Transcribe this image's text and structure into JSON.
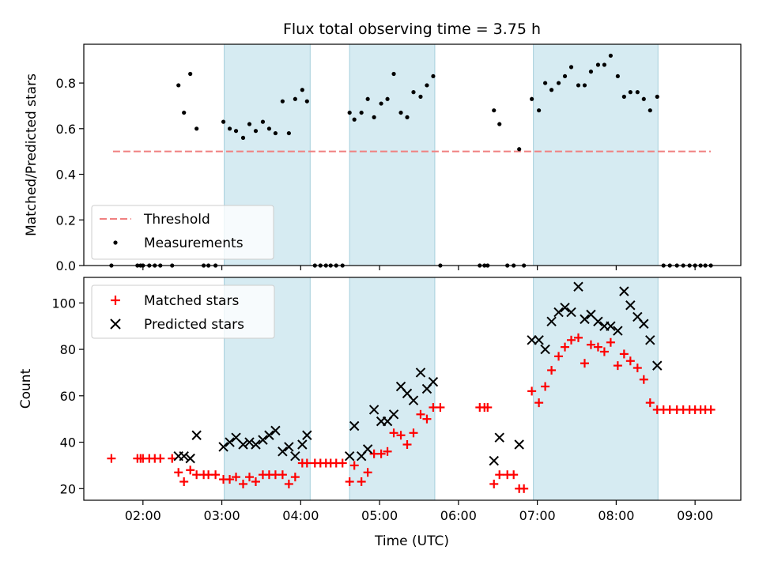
{
  "chart_data": [
    {
      "type": "scatter",
      "title": "Flux total observing time = 3.75 h",
      "ylabel": "Matched/Predicted stars",
      "xlabel": "",
      "xlim": [
        1.25,
        9.58
      ],
      "ylim": [
        0,
        0.97
      ],
      "yticks": [
        0.0,
        0.2,
        0.4,
        0.6,
        0.8
      ],
      "ytick_labels": [
        "0.0",
        "0.2",
        "0.4",
        "0.6",
        "0.8"
      ],
      "grid": false,
      "legend_position": "lower-left",
      "shaded_intervals": [
        [
          3.03,
          4.12
        ],
        [
          4.62,
          5.7
        ],
        [
          6.95,
          8.53
        ]
      ],
      "threshold": {
        "name": "Threshold",
        "y": 0.5,
        "x_range": [
          1.62,
          9.2
        ],
        "color": "#f08080",
        "style": "dashed"
      },
      "series": [
        {
          "name": "Measurements",
          "marker": "dot",
          "color": "#000000",
          "x": [
            1.6,
            1.93,
            1.97,
            2.0,
            2.08,
            2.15,
            2.22,
            2.37,
            2.45,
            2.52,
            2.6,
            2.68,
            2.77,
            2.83,
            2.92,
            3.02,
            3.1,
            3.18,
            3.27,
            3.35,
            3.43,
            3.52,
            3.6,
            3.68,
            3.77,
            3.85,
            3.93,
            4.02,
            4.08,
            4.18,
            4.25,
            4.32,
            4.38,
            4.45,
            4.53,
            4.62,
            4.68,
            4.77,
            4.85,
            4.93,
            5.02,
            5.1,
            5.18,
            5.27,
            5.35,
            5.43,
            5.52,
            5.6,
            5.68,
            5.77,
            6.27,
            6.33,
            6.37,
            6.45,
            6.52,
            6.62,
            6.7,
            6.77,
            6.83,
            6.93,
            7.02,
            7.1,
            7.18,
            7.27,
            7.35,
            7.43,
            7.52,
            7.6,
            7.68,
            7.77,
            7.85,
            7.93,
            8.02,
            8.1,
            8.18,
            8.27,
            8.35,
            8.43,
            8.52,
            8.6,
            8.68,
            8.77,
            8.85,
            8.93,
            9.0,
            9.07,
            9.13,
            9.2
          ],
          "y": [
            0,
            0,
            0,
            0,
            0,
            0,
            0,
            0,
            0.79,
            0.67,
            0.84,
            0.6,
            0,
            0,
            0,
            0.63,
            0.6,
            0.59,
            0.56,
            0.62,
            0.59,
            0.63,
            0.6,
            0.58,
            0.72,
            0.58,
            0.73,
            0.77,
            0.72,
            0,
            0,
            0,
            0,
            0,
            0,
            0.67,
            0.64,
            0.67,
            0.73,
            0.65,
            0.71,
            0.73,
            0.84,
            0.67,
            0.65,
            0.76,
            0.74,
            0.79,
            0.83,
            0,
            0,
            0,
            0,
            0.68,
            0.62,
            0,
            0,
            0.51,
            0,
            0.73,
            0.68,
            0.8,
            0.77,
            0.8,
            0.83,
            0.87,
            0.79,
            0.79,
            0.85,
            0.88,
            0.88,
            0.92,
            0.83,
            0.74,
            0.76,
            0.76,
            0.73,
            0.68,
            0.74,
            0,
            0,
            0,
            0,
            0,
            0,
            0,
            0,
            0
          ]
        }
      ]
    },
    {
      "type": "scatter",
      "title": "",
      "xlabel": "Time (UTC)",
      "ylabel": "Count",
      "xlim": [
        1.25,
        9.58
      ],
      "ylim": [
        15,
        111
      ],
      "xticks": [
        2,
        3,
        4,
        5,
        6,
        7,
        8,
        9
      ],
      "xtick_labels": [
        "02:00",
        "03:00",
        "04:00",
        "05:00",
        "06:00",
        "07:00",
        "08:00",
        "09:00"
      ],
      "yticks": [
        20,
        40,
        60,
        80,
        100
      ],
      "ytick_labels": [
        "20",
        "40",
        "60",
        "80",
        "100"
      ],
      "grid": false,
      "legend_position": "upper-left",
      "shaded_intervals": [
        [
          3.03,
          4.12
        ],
        [
          4.62,
          5.7
        ],
        [
          6.95,
          8.53
        ]
      ],
      "series": [
        {
          "name": "Matched stars",
          "marker": "plus",
          "color": "#ff0000",
          "x": [
            1.6,
            1.93,
            1.97,
            2.0,
            2.08,
            2.15,
            2.22,
            2.37,
            2.45,
            2.52,
            2.6,
            2.68,
            2.77,
            2.83,
            2.92,
            3.02,
            3.1,
            3.18,
            3.27,
            3.35,
            3.43,
            3.52,
            3.6,
            3.68,
            3.77,
            3.85,
            3.93,
            4.02,
            4.08,
            4.18,
            4.25,
            4.32,
            4.38,
            4.45,
            4.53,
            4.62,
            4.68,
            4.77,
            4.85,
            4.93,
            5.02,
            5.1,
            5.18,
            5.27,
            5.35,
            5.43,
            5.52,
            5.6,
            5.68,
            5.77,
            6.27,
            6.33,
            6.37,
            6.45,
            6.52,
            6.62,
            6.7,
            6.77,
            6.83,
            6.93,
            7.02,
            7.1,
            7.18,
            7.27,
            7.35,
            7.43,
            7.52,
            7.6,
            7.68,
            7.77,
            7.85,
            7.93,
            8.02,
            8.1,
            8.18,
            8.27,
            8.35,
            8.43,
            8.52,
            8.6,
            8.68,
            8.77,
            8.85,
            8.93,
            9.0,
            9.07,
            9.13,
            9.2
          ],
          "y": [
            33,
            33,
            33,
            33,
            33,
            33,
            33,
            33,
            27,
            23,
            28,
            26,
            26,
            26,
            26,
            24,
            24,
            25,
            22,
            25,
            23,
            26,
            26,
            26,
            26,
            22,
            25,
            31,
            31,
            31,
            31,
            31,
            31,
            31,
            31,
            23,
            30,
            23,
            27,
            35,
            35,
            36,
            44,
            43,
            39,
            44,
            52,
            50,
            55,
            55,
            55,
            55,
            55,
            22,
            26,
            26,
            26,
            20,
            20,
            62,
            57,
            64,
            71,
            77,
            81,
            84,
            85,
            74,
            82,
            81,
            79,
            83,
            73,
            78,
            75,
            72,
            67,
            57,
            54,
            54,
            54,
            54,
            54,
            54,
            54,
            54,
            54,
            54
          ]
        },
        {
          "name": "Predicted stars",
          "marker": "x",
          "color": "#000000",
          "x": [
            2.45,
            2.52,
            2.6,
            2.68,
            3.02,
            3.1,
            3.18,
            3.27,
            3.35,
            3.43,
            3.52,
            3.6,
            3.68,
            3.77,
            3.85,
            3.93,
            4.02,
            4.08,
            4.62,
            4.68,
            4.77,
            4.85,
            4.93,
            5.02,
            5.1,
            5.18,
            5.27,
            5.35,
            5.43,
            5.52,
            5.6,
            5.68,
            6.45,
            6.52,
            6.77,
            6.93,
            7.02,
            7.1,
            7.18,
            7.27,
            7.35,
            7.43,
            7.52,
            7.6,
            7.68,
            7.77,
            7.85,
            7.93,
            8.02,
            8.1,
            8.18,
            8.27,
            8.35,
            8.43,
            8.52
          ],
          "y": [
            34,
            34,
            33,
            43,
            38,
            40,
            42,
            39,
            40,
            39,
            41,
            43,
            45,
            36,
            38,
            34,
            39,
            43,
            34,
            47,
            34,
            37,
            54,
            49,
            49,
            52,
            64,
            61,
            58,
            70,
            63,
            66,
            32,
            42,
            39,
            84,
            84,
            80,
            92,
            96,
            98,
            96,
            107,
            93,
            95,
            92,
            90,
            90,
            88,
            105,
            99,
            94,
            91,
            84,
            73
          ]
        }
      ]
    }
  ]
}
